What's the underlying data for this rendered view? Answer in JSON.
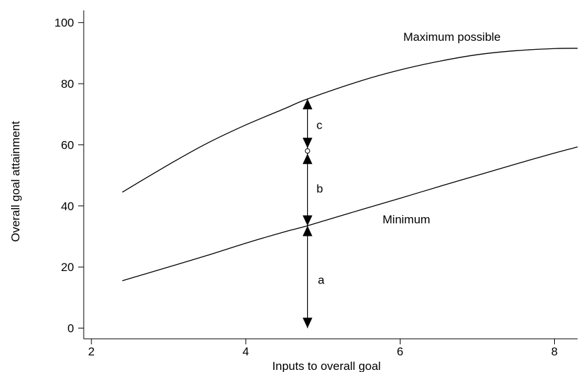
{
  "chart_data": {
    "type": "line",
    "xlabel": "Inputs to overall goal",
    "ylabel": "Overall goal attainment",
    "xlim": [
      1.9,
      8.3
    ],
    "ylim": [
      -3.5,
      104
    ],
    "xticks": [
      2,
      4,
      6,
      8
    ],
    "yticks": [
      0,
      20,
      40,
      60,
      80,
      100
    ],
    "grid": false,
    "series": [
      {
        "name": "Maximum possible",
        "x": [
          2.4,
          3.0,
          3.5,
          4.0,
          4.5,
          4.8,
          5.5,
          6.0,
          6.5,
          7.0,
          7.5,
          8.0,
          8.3
        ],
        "y": [
          44.5,
          53.5,
          60.5,
          66.5,
          71.8,
          75.0,
          81.0,
          84.5,
          87.3,
          89.5,
          90.8,
          91.5,
          91.6
        ]
      },
      {
        "name": "Minimum",
        "x": [
          2.4,
          3.0,
          3.5,
          4.0,
          4.5,
          4.8,
          5.5,
          6.0,
          6.5,
          7.0,
          7.5,
          8.0,
          8.3
        ],
        "y": [
          15.5,
          20.0,
          23.8,
          27.8,
          31.5,
          33.5,
          38.8,
          42.5,
          46.3,
          50.0,
          53.7,
          57.3,
          59.3
        ]
      }
    ],
    "annotations": {
      "x": 4.8,
      "bottom": 0,
      "min_y": 33.5,
      "mid_y": 58.0,
      "max_y": 75.0,
      "labels": [
        "a",
        "b",
        "c"
      ]
    }
  }
}
